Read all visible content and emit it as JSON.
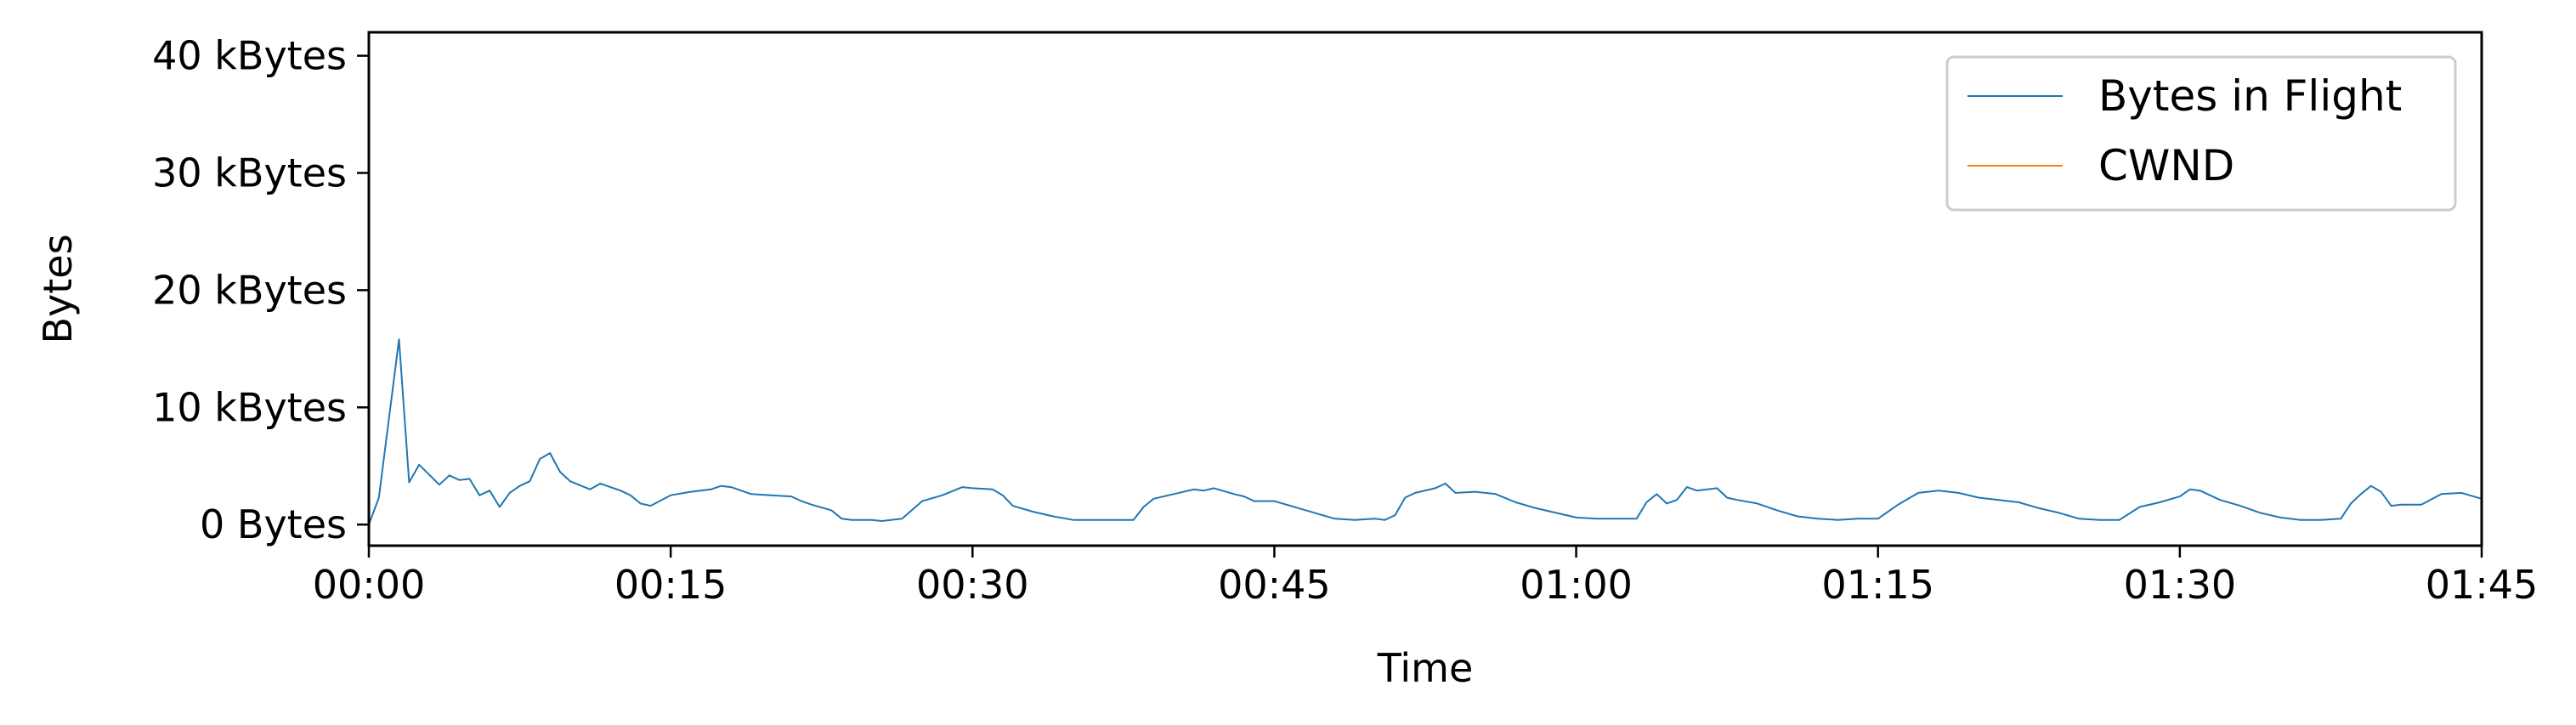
{
  "chart_data": {
    "type": "line",
    "title": "",
    "xlabel": "Time",
    "ylabel": "Bytes",
    "xlim": [
      "00:00",
      "01:45"
    ],
    "ylim": [
      -1800,
      42000
    ],
    "x_unit": "minutes:seconds",
    "x_tick_labels": [
      "00:00",
      "00:15",
      "00:30",
      "00:45",
      "01:00",
      "01:15",
      "01:30",
      "01:45"
    ],
    "y_tick_values": [
      0,
      10000,
      20000,
      30000,
      40000
    ],
    "y_tick_labels": [
      "0 Bytes",
      "10 kBytes",
      "20 kBytes",
      "30 kBytes",
      "40 kBytes"
    ],
    "grid": false,
    "legend_position": "top-right",
    "series": [
      {
        "name": "Bytes in Flight",
        "color": "#1f77b4",
        "points": [
          [
            "00:00",
            0
          ],
          [
            "00:00.5",
            2300
          ],
          [
            "00:01.5",
            15800
          ],
          [
            "00:02",
            3600
          ],
          [
            "00:02.5",
            5100
          ],
          [
            "00:03.5",
            3400
          ],
          [
            "00:04",
            4200
          ],
          [
            "00:04.5",
            3800
          ],
          [
            "00:05",
            3900
          ],
          [
            "00:05.5",
            2500
          ],
          [
            "00:06",
            2900
          ],
          [
            "00:06.5",
            1500
          ],
          [
            "00:07",
            2700
          ],
          [
            "00:07.5",
            3300
          ],
          [
            "00:08",
            3700
          ],
          [
            "00:08.5",
            5600
          ],
          [
            "00:09",
            6100
          ],
          [
            "00:09.5",
            4500
          ],
          [
            "00:10",
            3700
          ],
          [
            "00:11",
            3000
          ],
          [
            "00:11.5",
            3500
          ],
          [
            "00:12.5",
            2900
          ],
          [
            "00:13",
            2500
          ],
          [
            "00:13.5",
            1800
          ],
          [
            "00:14",
            1600
          ],
          [
            "00:15",
            2500
          ],
          [
            "00:16",
            2800
          ],
          [
            "00:17",
            3000
          ],
          [
            "00:17.5",
            3300
          ],
          [
            "00:18",
            3200
          ],
          [
            "00:19",
            2600
          ],
          [
            "00:20",
            2500
          ],
          [
            "00:21",
            2400
          ],
          [
            "00:21.5",
            2000
          ],
          [
            "00:22",
            1700
          ],
          [
            "00:23",
            1200
          ],
          [
            "00:23.5",
            500
          ],
          [
            "00:24",
            400
          ],
          [
            "00:25",
            400
          ],
          [
            "00:25.5",
            300
          ],
          [
            "00:26.5",
            500
          ],
          [
            "00:27.5",
            2000
          ],
          [
            "00:28.5",
            2500
          ],
          [
            "00:29.5",
            3200
          ],
          [
            "00:30",
            3100
          ],
          [
            "00:31",
            3000
          ],
          [
            "00:31.5",
            2500
          ],
          [
            "00:32",
            1600
          ],
          [
            "00:33",
            1100
          ],
          [
            "00:34",
            700
          ],
          [
            "00:35",
            400
          ],
          [
            "00:36",
            400
          ],
          [
            "00:37",
            400
          ],
          [
            "00:38",
            400
          ],
          [
            "00:38.5",
            1500
          ],
          [
            "00:39",
            2200
          ],
          [
            "00:40",
            2600
          ],
          [
            "00:41",
            3000
          ],
          [
            "00:41.5",
            2900
          ],
          [
            "00:42",
            3100
          ],
          [
            "00:43",
            2600
          ],
          [
            "00:43.5",
            2400
          ],
          [
            "00:44",
            2000
          ],
          [
            "00:45",
            2000
          ],
          [
            "00:46",
            1500
          ],
          [
            "00:47",
            1000
          ],
          [
            "00:48",
            500
          ],
          [
            "00:49",
            400
          ],
          [
            "00:50",
            500
          ],
          [
            "00:50.5",
            400
          ],
          [
            "00:51",
            800
          ],
          [
            "00:51.5",
            2300
          ],
          [
            "00:52",
            2700
          ],
          [
            "00:53",
            3100
          ],
          [
            "00:53.5",
            3500
          ],
          [
            "00:54",
            2700
          ],
          [
            "00:55",
            2800
          ],
          [
            "00:56",
            2600
          ],
          [
            "00:57",
            1900
          ],
          [
            "00:58",
            1400
          ],
          [
            "00:59",
            1000
          ],
          [
            "01:00",
            600
          ],
          [
            "01:01",
            500
          ],
          [
            "01:02",
            500
          ],
          [
            "01:03",
            500
          ],
          [
            "01:03.5",
            1900
          ],
          [
            "01:04",
            2600
          ],
          [
            "01:04.5",
            1800
          ],
          [
            "01:05",
            2100
          ],
          [
            "01:05.5",
            3200
          ],
          [
            "01:06",
            2900
          ],
          [
            "01:07",
            3100
          ],
          [
            "01:07.5",
            2300
          ],
          [
            "01:08",
            2100
          ],
          [
            "01:09",
            1800
          ],
          [
            "01:10",
            1200
          ],
          [
            "01:11",
            700
          ],
          [
            "01:12",
            500
          ],
          [
            "01:13",
            400
          ],
          [
            "01:14",
            500
          ],
          [
            "01:15",
            500
          ],
          [
            "01:16",
            1700
          ],
          [
            "01:17",
            2700
          ],
          [
            "01:18",
            2900
          ],
          [
            "01:19",
            2700
          ],
          [
            "01:20",
            2300
          ],
          [
            "01:21",
            2100
          ],
          [
            "01:22",
            1900
          ],
          [
            "01:23",
            1400
          ],
          [
            "01:24",
            1000
          ],
          [
            "01:25",
            500
          ],
          [
            "01:26",
            400
          ],
          [
            "01:27",
            400
          ],
          [
            "01:28",
            1500
          ],
          [
            "01:29",
            1900
          ],
          [
            "01:30",
            2400
          ],
          [
            "01:30.5",
            3000
          ],
          [
            "01:31",
            2900
          ],
          [
            "01:32",
            2100
          ],
          [
            "01:33",
            1600
          ],
          [
            "01:34",
            1000
          ],
          [
            "01:35",
            600
          ],
          [
            "01:36",
            400
          ],
          [
            "01:37",
            400
          ],
          [
            "01:38",
            500
          ],
          [
            "01:38.5",
            1800
          ],
          [
            "01:39",
            2600
          ],
          [
            "01:39.5",
            3300
          ],
          [
            "01:40",
            2800
          ],
          [
            "01:40.5",
            1600
          ],
          [
            "01:41",
            1700
          ],
          [
            "01:42",
            1700
          ],
          [
            "01:43",
            2600
          ],
          [
            "01:44",
            2700
          ],
          [
            "01:45",
            2200
          ]
        ]
      },
      {
        "name": "CWND",
        "color": "#ff7f0e",
        "points": []
      }
    ]
  }
}
